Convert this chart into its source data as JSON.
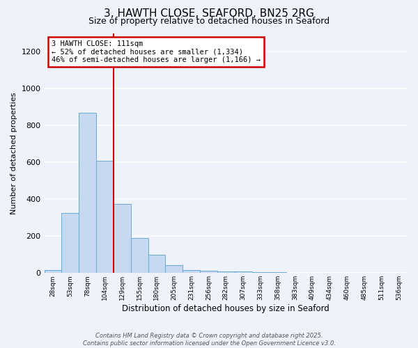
{
  "title": "3, HAWTH CLOSE, SEAFORD, BN25 2RG",
  "subtitle": "Size of property relative to detached houses in Seaford",
  "xlabel": "Distribution of detached houses by size in Seaford",
  "ylabel": "Number of detached properties",
  "bar_labels": [
    "28sqm",
    "53sqm",
    "78sqm",
    "104sqm",
    "129sqm",
    "155sqm",
    "180sqm",
    "205sqm",
    "231sqm",
    "256sqm",
    "282sqm",
    "307sqm",
    "333sqm",
    "358sqm",
    "383sqm",
    "409sqm",
    "434sqm",
    "460sqm",
    "485sqm",
    "511sqm",
    "536sqm"
  ],
  "bar_values": [
    15,
    325,
    870,
    610,
    375,
    190,
    100,
    42,
    15,
    12,
    10,
    8,
    5,
    3,
    2,
    2,
    1,
    0,
    0,
    0,
    0
  ],
  "bar_color": "#c6d9f0",
  "bar_edge_color": "#6aaad4",
  "ylim": [
    0,
    1300
  ],
  "yticks": [
    0,
    200,
    400,
    600,
    800,
    1000,
    1200
  ],
  "vline_x": 3.5,
  "annotation_title": "3 HAWTH CLOSE: 111sqm",
  "annotation_line1": "← 52% of detached houses are smaller (1,334)",
  "annotation_line2": "46% of semi-detached houses are larger (1,166) →",
  "annotation_box_color": "#cc0000",
  "vline_color": "#cc0000",
  "background_color": "#eef2fb",
  "grid_color": "#ffffff",
  "footer1": "Contains HM Land Registry data © Crown copyright and database right 2025.",
  "footer2": "Contains public sector information licensed under the Open Government Licence v3.0."
}
